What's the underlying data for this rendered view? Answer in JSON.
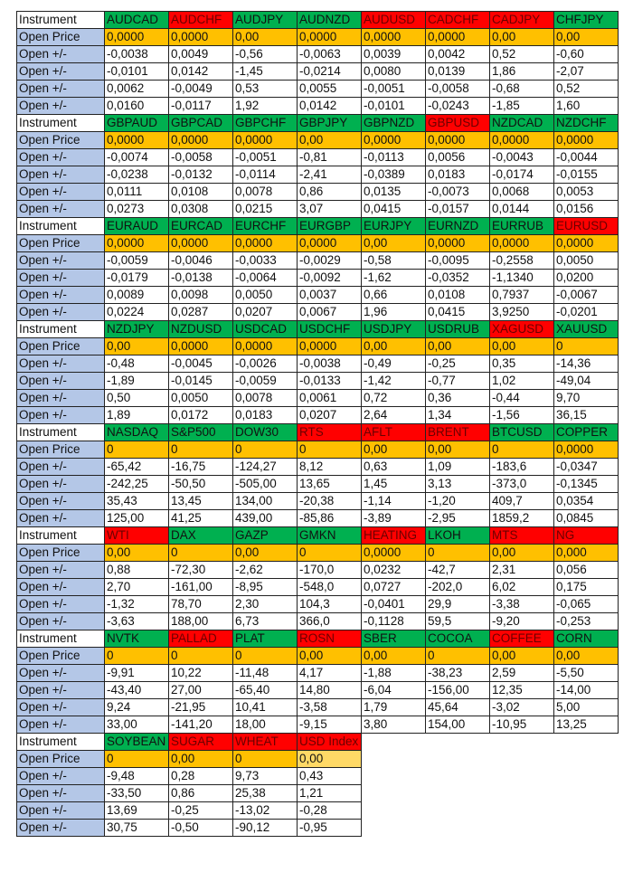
{
  "labels": {
    "instrument": "Instrument",
    "open_price": "Open Price",
    "open_change": "Open +/-"
  },
  "colors": {
    "green": "#00b050",
    "red": "#ff0000",
    "open": "#ffc000",
    "label": "#b4c7e7"
  },
  "blocks": [
    {
      "instruments": [
        {
          "name": "AUDCAD",
          "status": "green",
          "open": "0,0000",
          "changes": [
            "-0,0038",
            "-0,0101",
            "0,0062",
            "0,0160"
          ]
        },
        {
          "name": "AUDCHF",
          "status": "red",
          "open": "0,0000",
          "changes": [
            "0,0049",
            "0,0142",
            "-0,0049",
            "-0,0117"
          ]
        },
        {
          "name": "AUDJPY",
          "status": "green",
          "open": "0,00",
          "changes": [
            "-0,56",
            "-1,45",
            "0,53",
            "1,92"
          ]
        },
        {
          "name": "AUDNZD",
          "status": "green",
          "open": "0,0000",
          "changes": [
            "-0,0063",
            "-0,0214",
            "0,0055",
            "0,0142"
          ]
        },
        {
          "name": "AUDUSD",
          "status": "red",
          "open": "0,0000",
          "changes": [
            "0,0039",
            "0,0080",
            "-0,0051",
            "-0,0101"
          ]
        },
        {
          "name": "CADCHF",
          "status": "red",
          "open": "0,0000",
          "changes": [
            "0,0042",
            "0,0139",
            "-0,0058",
            "-0,0243"
          ]
        },
        {
          "name": "CADJPY",
          "status": "red",
          "open": "0,00",
          "changes": [
            "0,52",
            "1,86",
            "-0,68",
            "-1,85"
          ]
        },
        {
          "name": "CHFJPY",
          "status": "green",
          "open": "0,00",
          "changes": [
            "-0,60",
            "-2,07",
            "0,52",
            "1,60"
          ]
        }
      ]
    },
    {
      "instruments": [
        {
          "name": "GBPAUD",
          "status": "green",
          "open": "0,0000",
          "changes": [
            "-0,0074",
            "-0,0238",
            "0,0111",
            "0,0273"
          ]
        },
        {
          "name": "GBPCAD",
          "status": "green",
          "open": "0,0000",
          "changes": [
            "-0,0058",
            "-0,0132",
            "0,0108",
            "0,0308"
          ]
        },
        {
          "name": "GBPCHF",
          "status": "green",
          "open": "0,0000",
          "changes": [
            "-0,0051",
            "-0,0114",
            "0,0078",
            "0,0215"
          ]
        },
        {
          "name": "GBPJPY",
          "status": "green",
          "open": "0,00",
          "changes": [
            "-0,81",
            "-2,41",
            "0,86",
            "3,07"
          ]
        },
        {
          "name": "GBPNZD",
          "status": "green",
          "open": "0,0000",
          "changes": [
            "-0,0113",
            "-0,0389",
            "0,0135",
            "0,0415"
          ]
        },
        {
          "name": "GBPUSD",
          "status": "red",
          "open": "0,0000",
          "changes": [
            "0,0056",
            "0,0183",
            "-0,0073",
            "-0,0157"
          ]
        },
        {
          "name": "NZDCAD",
          "status": "green",
          "open": "0,0000",
          "changes": [
            "-0,0043",
            "-0,0174",
            "0,0068",
            "0,0144"
          ]
        },
        {
          "name": "NZDCHF",
          "status": "green",
          "open": "0,0000",
          "changes": [
            "-0,0044",
            "-0,0155",
            "0,0053",
            "0,0156"
          ]
        }
      ]
    },
    {
      "instruments": [
        {
          "name": "EURAUD",
          "status": "green",
          "open": "0,0000",
          "changes": [
            "-0,0059",
            "-0,0179",
            "0,0089",
            "0,0224"
          ]
        },
        {
          "name": "EURCAD",
          "status": "green",
          "open": "0,0000",
          "changes": [
            "-0,0046",
            "-0,0138",
            "0,0098",
            "0,0287"
          ]
        },
        {
          "name": "EURCHF",
          "status": "green",
          "open": "0,0000",
          "changes": [
            "-0,0033",
            "-0,0064",
            "0,0050",
            "0,0207"
          ]
        },
        {
          "name": "EURGBP",
          "status": "green",
          "open": "0,0000",
          "changes": [
            "-0,0029",
            "-0,0092",
            "0,0037",
            "0,0067"
          ]
        },
        {
          "name": "EURJPY",
          "status": "green",
          "open": "0,00",
          "changes": [
            "-0,58",
            "-1,62",
            "0,66",
            "1,96"
          ]
        },
        {
          "name": "EURNZD",
          "status": "green",
          "open": "0,0000",
          "changes": [
            "-0,0095",
            "-0,0352",
            "0,0108",
            "0,0415"
          ]
        },
        {
          "name": "EURRUB",
          "status": "green",
          "open": "0,0000",
          "changes": [
            "-0,2558",
            "-1,1340",
            "0,7937",
            "3,9250"
          ]
        },
        {
          "name": "EURUSD",
          "status": "red",
          "open": "0,0000",
          "changes": [
            "0,0050",
            "0,0200",
            "-0,0067",
            "-0,0201"
          ]
        }
      ]
    },
    {
      "instruments": [
        {
          "name": "NZDJPY",
          "status": "green",
          "open": "0,00",
          "changes": [
            "-0,48",
            "-1,89",
            "0,50",
            "1,89"
          ]
        },
        {
          "name": "NZDUSD",
          "status": "green",
          "open": "0,0000",
          "changes": [
            "-0,0045",
            "-0,0145",
            "0,0050",
            "0,0172"
          ]
        },
        {
          "name": "USDCAD",
          "status": "green",
          "open": "0,0000",
          "changes": [
            "-0,0026",
            "-0,0059",
            "0,0078",
            "0,0183"
          ]
        },
        {
          "name": "USDCHF",
          "status": "green",
          "open": "0,0000",
          "changes": [
            "-0,0038",
            "-0,0133",
            "0,0061",
            "0,0207"
          ]
        },
        {
          "name": "USDJPY",
          "status": "green",
          "open": "0,00",
          "changes": [
            "-0,49",
            "-1,42",
            "0,72",
            "2,64"
          ]
        },
        {
          "name": "USDRUB",
          "status": "green",
          "open": "0,00",
          "changes": [
            "-0,25",
            "-0,77",
            "0,36",
            "1,34"
          ]
        },
        {
          "name": "XAGUSD",
          "status": "red",
          "open": "0,00",
          "changes": [
            "0,35",
            "1,02",
            "-0,44",
            "-1,56"
          ]
        },
        {
          "name": "XAUUSD",
          "status": "green",
          "open": "0",
          "changes": [
            "-14,36",
            "-49,04",
            "9,70",
            "36,15"
          ]
        }
      ]
    },
    {
      "instruments": [
        {
          "name": "NASDAQ",
          "status": "green",
          "open": "0",
          "changes": [
            "-65,42",
            "-242,25",
            "35,43",
            "125,00"
          ]
        },
        {
          "name": "S&P500",
          "status": "green",
          "open": "0",
          "changes": [
            "-16,75",
            "-50,50",
            "13,45",
            "41,25"
          ]
        },
        {
          "name": "DOW30",
          "status": "green",
          "open": "0",
          "changes": [
            "-124,27",
            "-505,00",
            "134,00",
            "439,00"
          ]
        },
        {
          "name": "RTS",
          "status": "red",
          "open": "0",
          "changes": [
            "8,12",
            "13,65",
            "-20,38",
            "-85,86"
          ]
        },
        {
          "name": "AFLT",
          "status": "red",
          "open": "0,00",
          "changes": [
            "0,63",
            "1,45",
            "-1,14",
            "-3,89"
          ]
        },
        {
          "name": "BRENT",
          "status": "red",
          "open": "0,00",
          "changes": [
            "1,09",
            "3,13",
            "-1,20",
            "-2,95"
          ]
        },
        {
          "name": "BTCUSD",
          "status": "green",
          "open": "0",
          "changes": [
            "-183,6",
            "-373,0",
            "409,7",
            "1859,2"
          ]
        },
        {
          "name": "COPPER",
          "status": "green",
          "open": "0,0000",
          "changes": [
            "-0,0347",
            "-0,1345",
            "0,0354",
            "0,0845"
          ]
        }
      ]
    },
    {
      "instruments": [
        {
          "name": "WTI",
          "status": "red",
          "open": "0,00",
          "changes": [
            "0,88",
            "2,70",
            "-1,32",
            "-3,63"
          ]
        },
        {
          "name": "DAX",
          "status": "green",
          "open": "0",
          "changes": [
            "-72,30",
            "-161,00",
            "78,70",
            "188,00"
          ]
        },
        {
          "name": "GAZP",
          "status": "green",
          "open": "0,00",
          "changes": [
            "-2,62",
            "-8,95",
            "2,30",
            "6,73"
          ]
        },
        {
          "name": "GMKN",
          "status": "green",
          "open": "0",
          "changes": [
            "-170,0",
            "-548,0",
            "104,3",
            "366,0"
          ]
        },
        {
          "name": "HEATING",
          "status": "red",
          "open": "0,0000",
          "changes": [
            "0,0232",
            "0,0727",
            "-0,0401",
            "-0,1128"
          ]
        },
        {
          "name": "LKOH",
          "status": "green",
          "open": "0",
          "changes": [
            "-42,7",
            "-202,0",
            "29,9",
            "59,5"
          ]
        },
        {
          "name": "MTS",
          "status": "red",
          "open": "0,00",
          "changes": [
            "2,31",
            "6,02",
            "-3,38",
            "-9,20"
          ]
        },
        {
          "name": "NG",
          "status": "red",
          "open": "0,000",
          "changes": [
            "0,056",
            "0,175",
            "-0,065",
            "-0,253"
          ]
        }
      ]
    },
    {
      "instruments": [
        {
          "name": "NVTK",
          "status": "green",
          "open": "0",
          "changes": [
            "-9,91",
            "-43,40",
            "9,24",
            "33,00"
          ]
        },
        {
          "name": "PALLAD",
          "status": "red",
          "open": "0",
          "changes": [
            "10,22",
            "27,00",
            "-21,95",
            "-141,20"
          ]
        },
        {
          "name": "PLAT",
          "status": "green",
          "open": "0",
          "changes": [
            "-11,48",
            "-65,40",
            "10,41",
            "18,00"
          ]
        },
        {
          "name": "ROSN",
          "status": "red",
          "open": "0,00",
          "changes": [
            "4,17",
            "14,80",
            "-3,58",
            "-9,15"
          ]
        },
        {
          "name": "SBER",
          "status": "green",
          "open": "0,00",
          "changes": [
            "-1,88",
            "-6,04",
            "1,79",
            "3,80"
          ]
        },
        {
          "name": "COCOA",
          "status": "green",
          "open": "0",
          "changes": [
            "-38,23",
            "-156,00",
            "45,64",
            "154,00"
          ]
        },
        {
          "name": "COFFEE",
          "status": "red",
          "open": "0,00",
          "changes": [
            "2,59",
            "12,35",
            "-3,02",
            "-10,95"
          ]
        },
        {
          "name": "CORN",
          "status": "green",
          "open": "0,00",
          "changes": [
            "-5,50",
            "-14,00",
            "5,00",
            "13,25"
          ]
        }
      ]
    },
    {
      "instruments": [
        {
          "name": "SOYBEAN",
          "status": "green",
          "open": "0",
          "changes": [
            "-9,48",
            "-33,50",
            "13,69",
            "30,75"
          ]
        },
        {
          "name": "SUGAR",
          "status": "red",
          "open": "0,00",
          "changes": [
            "0,28",
            "0,86",
            "-0,25",
            "-0,50"
          ]
        },
        {
          "name": "WHEAT",
          "status": "red",
          "open": "0",
          "changes": [
            "9,73",
            "25,38",
            "-13,02",
            "-90,12"
          ]
        },
        {
          "name": "USD Index",
          "status": "red",
          "open": "0,00",
          "open_style": "light",
          "changes": [
            "0,43",
            "1,21",
            "-0,28",
            "-0,95"
          ]
        }
      ]
    }
  ]
}
